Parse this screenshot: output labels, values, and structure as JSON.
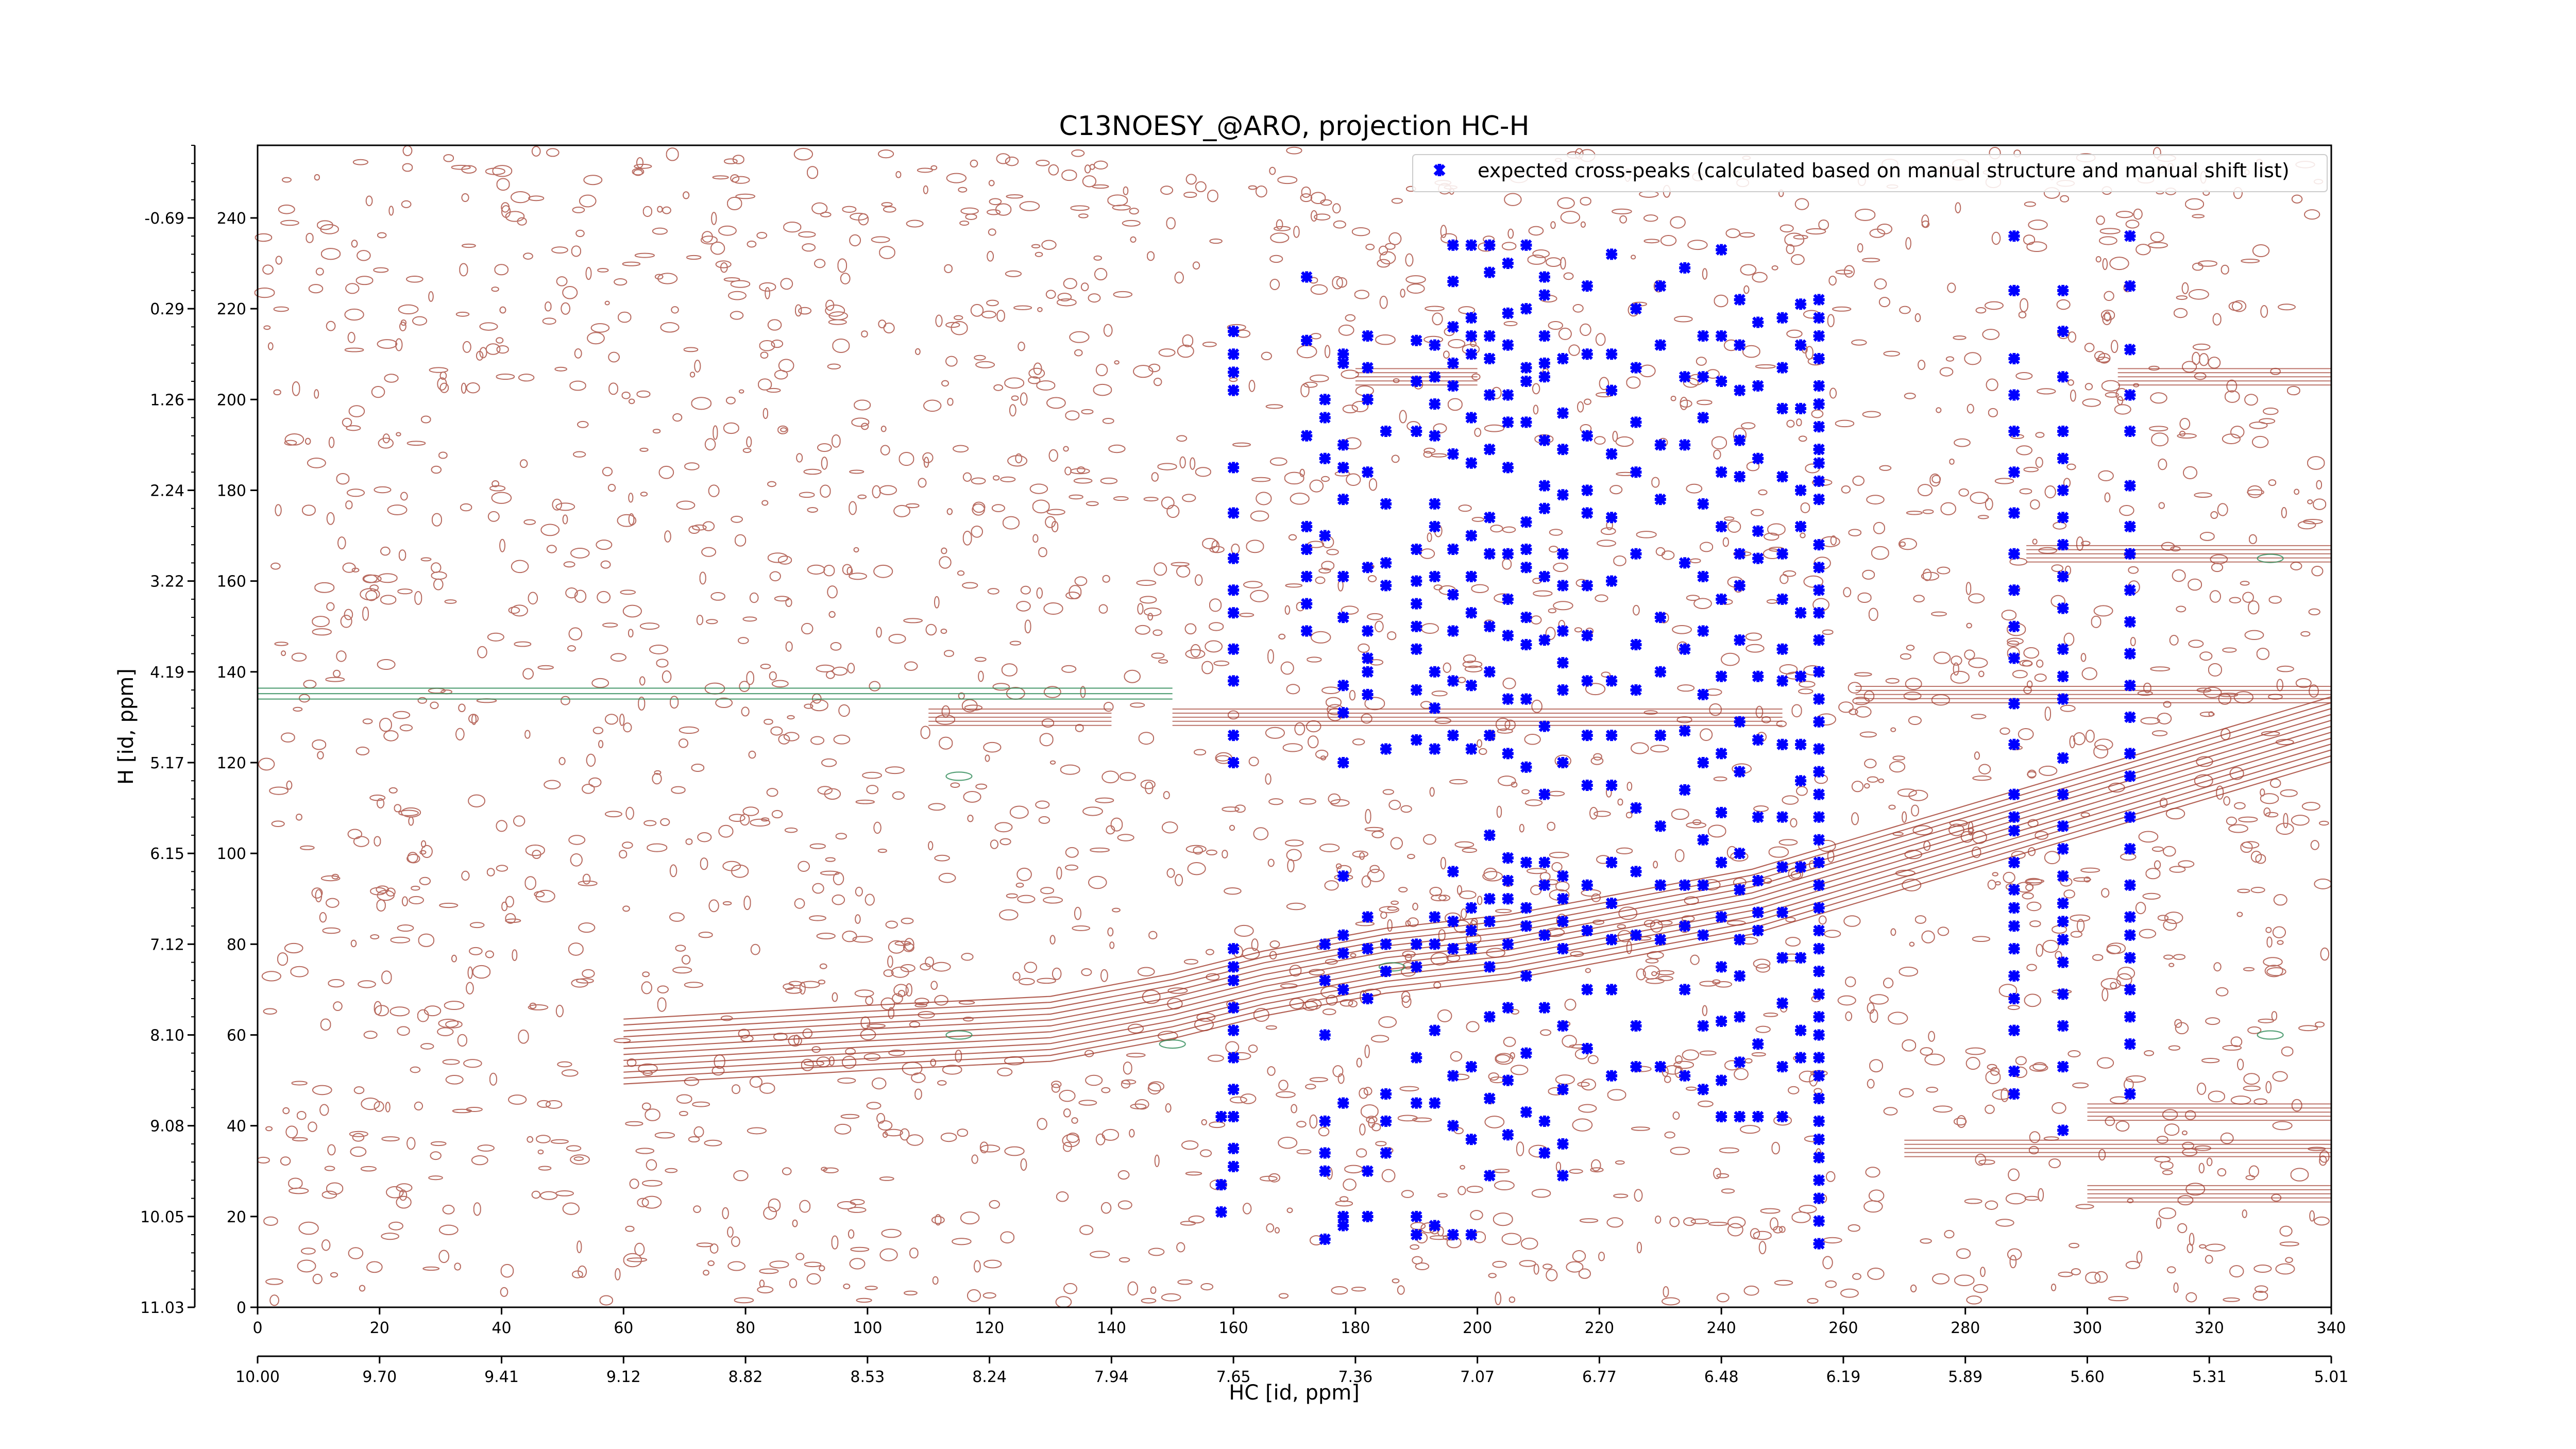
{
  "chart_data": {
    "type": "scatter",
    "title": "C13NOESY_@ARO, projection HC-H",
    "xlabel": "HC [id, ppm]",
    "ylabel": "H [id, ppm]",
    "xlim": [
      0,
      340
    ],
    "ylim": [
      0,
      256
    ],
    "x_ticks": [
      0,
      20,
      40,
      60,
      80,
      100,
      120,
      140,
      160,
      180,
      200,
      220,
      240,
      260,
      280,
      300,
      320,
      340
    ],
    "x_secondary_ticks": [
      {
        "x": 0,
        "label": "10.00"
      },
      {
        "x": 20,
        "label": "9.70"
      },
      {
        "x": 40,
        "label": "9.41"
      },
      {
        "x": 60,
        "label": "9.12"
      },
      {
        "x": 80,
        "label": "8.82"
      },
      {
        "x": 100,
        "label": "8.53"
      },
      {
        "x": 120,
        "label": "8.24"
      },
      {
        "x": 140,
        "label": "7.94"
      },
      {
        "x": 160,
        "label": "7.65"
      },
      {
        "x": 180,
        "label": "7.36"
      },
      {
        "x": 200,
        "label": "7.07"
      },
      {
        "x": 220,
        "label": "6.77"
      },
      {
        "x": 240,
        "label": "6.48"
      },
      {
        "x": 260,
        "label": "6.19"
      },
      {
        "x": 280,
        "label": "5.89"
      },
      {
        "x": 300,
        "label": "5.60"
      },
      {
        "x": 320,
        "label": "5.31"
      },
      {
        "x": 340,
        "label": "5.01"
      }
    ],
    "y_ticks": [
      0,
      20,
      40,
      60,
      80,
      100,
      120,
      140,
      160,
      180,
      200,
      220,
      240
    ],
    "y_ppm_labels": [
      {
        "y": 0,
        "label": "11.03"
      },
      {
        "y": 20,
        "label": "10.05"
      },
      {
        "y": 40,
        "label": "9.08"
      },
      {
        "y": 60,
        "label": "8.10"
      },
      {
        "y": 80,
        "label": "7.12"
      },
      {
        "y": 100,
        "label": "6.15"
      },
      {
        "y": 120,
        "label": "5.17"
      },
      {
        "y": 140,
        "label": "4.19"
      },
      {
        "y": 160,
        "label": "3.22"
      },
      {
        "y": 180,
        "label": "2.24"
      },
      {
        "y": 200,
        "label": "1.26"
      },
      {
        "y": 220,
        "label": "0.29"
      },
      {
        "y": 240,
        "label": "-0.69"
      }
    ],
    "legend": {
      "placement": "top-right",
      "entries": [
        {
          "label": "expected cross-peaks (calculated based on manual structure and manual shift list)",
          "color": "#0000ff",
          "marker": "x"
        }
      ]
    },
    "grid": false,
    "contour_colors": {
      "positive": "#a0392b",
      "negative": "#2e8b57"
    },
    "series": [
      {
        "name": "expected cross-peaks (calculated based on manual structure and manual shift list)",
        "color": "#0000ff",
        "columns": [
          {
            "x": 158,
            "y": [
              42,
              27,
              21
            ]
          },
          {
            "x": 160,
            "y": [
              215,
              210,
              206,
              202,
              185,
              175,
              165,
              158,
              153,
              145,
              138,
              126,
              120,
              79,
              75,
              72,
              66,
              61,
              55,
              48,
              42,
              35,
              31
            ]
          },
          {
            "x": 172,
            "y": [
              227,
              213,
              192,
              172,
              167,
              161,
              155,
              149
            ]
          },
          {
            "x": 175,
            "y": [
              200,
              196,
              187,
              170,
              80,
              72,
              60,
              41,
              34,
              30,
              15
            ]
          },
          {
            "x": 178,
            "y": [
              210,
              208,
              190,
              185,
              178,
              161,
              152,
              137,
              131,
              120,
              95,
              82,
              78,
              70,
              45,
              20,
              18
            ]
          },
          {
            "x": 182,
            "y": [
              214,
              207,
              200,
              184,
              163,
              149,
              143,
              140,
              135,
              86,
              79,
              68,
              30,
              20
            ]
          },
          {
            "x": 185,
            "y": [
              193,
              177,
              164,
              159,
              123,
              80,
              74,
              47,
              41,
              34
            ]
          },
          {
            "x": 190,
            "y": [
              213,
              204,
              193,
              167,
              160,
              155,
              150,
              145,
              136,
              125,
              80,
              75,
              55,
              45,
              20,
              16
            ]
          },
          {
            "x": 193,
            "y": [
              212,
              205,
              199,
              192,
              177,
              172,
              161,
              140,
              132,
              123,
              86,
              80,
              61,
              45,
              18
            ]
          },
          {
            "x": 196,
            "y": [
              234,
              226,
              216,
              208,
              203,
              188,
              167,
              157,
              149,
              138,
              126,
              96,
              85,
              79,
              51,
              40,
              16
            ]
          },
          {
            "x": 199,
            "y": [
              234,
              218,
              214,
              210,
              196,
              186,
              170,
              161,
              153,
              137,
              123,
              88,
              83,
              79,
              53,
              37,
              16
            ]
          },
          {
            "x": 202,
            "y": [
              234,
              228,
              214,
              209,
              201,
              189,
              174,
              166,
              150,
              140,
              126,
              104,
              90,
              85,
              75,
              64,
              46,
              29
            ]
          },
          {
            "x": 205,
            "y": [
              230,
              219,
              212,
              201,
              195,
              185,
              166,
              156,
              148,
              134,
              122,
              99,
              94,
              90,
              80,
              66,
              50,
              38
            ]
          },
          {
            "x": 208,
            "y": [
              234,
              220,
              207,
              204,
              195,
              173,
              167,
              163,
              152,
              146,
              134,
              119,
              98,
              88,
              84,
              73,
              56,
              43
            ]
          },
          {
            "x": 211,
            "y": [
              227,
              223,
              214,
              208,
              205,
              191,
              181,
              176,
              161,
              147,
              128,
              113,
              98,
              93,
              82,
              66,
              41,
              34
            ]
          },
          {
            "x": 214,
            "y": [
              209,
              197,
              189,
              179,
              166,
              159,
              149,
              142,
              136,
              120,
              95,
              90,
              85,
              79,
              62,
              48,
              36,
              29
            ]
          },
          {
            "x": 218,
            "y": [
              225,
              210,
              192,
              180,
              175,
              159,
              148,
              138,
              126,
              115,
              93,
              83,
              70,
              57
            ]
          },
          {
            "x": 222,
            "y": [
              232,
              210,
              202,
              188,
              174,
              160,
              138,
              126,
              115,
              98,
              89,
              81,
              70,
              51
            ]
          },
          {
            "x": 226,
            "y": [
              220,
              207,
              195,
              184,
              166,
              146,
              136,
              110,
              96,
              82,
              62,
              53
            ]
          },
          {
            "x": 230,
            "y": [
              225,
              212,
              190,
              178,
              152,
              140,
              126,
              106,
              93,
              81,
              53
            ]
          },
          {
            "x": 234,
            "y": [
              229,
              205,
              190,
              164,
              145,
              127,
              114,
              93,
              84,
              70,
              51
            ]
          },
          {
            "x": 237,
            "y": [
              214,
              205,
              196,
              177,
              161,
              149,
              135,
              120,
              103,
              93,
              82,
              62,
              48
            ]
          },
          {
            "x": 240,
            "y": [
              233,
              214,
              204,
              184,
              172,
              156,
              139,
              122,
              109,
              98,
              86,
              75,
              63,
              50,
              42
            ]
          },
          {
            "x": 243,
            "y": [
              222,
              212,
              202,
              191,
              183,
              166,
              159,
              147,
              129,
              118,
              100,
              92,
              81,
              73,
              64,
              54,
              42
            ]
          },
          {
            "x": 246,
            "y": [
              217,
              203,
              187,
              171,
              165,
              139,
              125,
              108,
              94,
              87,
              83,
              58,
              42
            ]
          },
          {
            "x": 250,
            "y": [
              218,
              207,
              198,
              183,
              166,
              156,
              145,
              138,
              124,
              108,
              97,
              87,
              77,
              67,
              53,
              42
            ]
          },
          {
            "x": 253,
            "y": [
              221,
              212,
              198,
              180,
              172,
              153,
              139,
              124,
              116,
              97,
              77,
              61,
              55
            ]
          },
          {
            "x": 256,
            "y": [
              222,
              218,
              214,
              209,
              203,
              199,
              194,
              189,
              186,
              182,
              178,
              168,
              163,
              158,
              153,
              147,
              140,
              134,
              129,
              123,
              118,
              113,
              108,
              103,
              98,
              93,
              88,
              83,
              79,
              74,
              69,
              64,
              60,
              55,
              51,
              46,
              41,
              37,
              33,
              28,
              24,
              19,
              14
            ]
          },
          {
            "x": 288,
            "y": [
              236,
              224,
              209,
              201,
              193,
              184,
              175,
              166,
              158,
              150,
              143,
              133,
              124,
              113,
              108,
              105,
              98,
              92,
              88,
              84,
              79,
              73,
              68,
              61,
              52,
              47
            ]
          },
          {
            "x": 296,
            "y": [
              224,
              215,
              205,
              193,
              187,
              180,
              174,
              168,
              161,
              154,
              145,
              139,
              134,
              121,
              113,
              106,
              101,
              95,
              89,
              85,
              81,
              76,
              69,
              62,
              53,
              39
            ]
          },
          {
            "x": 307,
            "y": [
              236,
              225,
              211,
              201,
              193,
              181,
              172,
              166,
              158,
              151,
              144,
              137,
              130,
              122,
              117,
              108,
              101,
              93,
              86,
              82,
              77,
              70,
              64,
              58,
              47
            ]
          }
        ]
      }
    ]
  }
}
